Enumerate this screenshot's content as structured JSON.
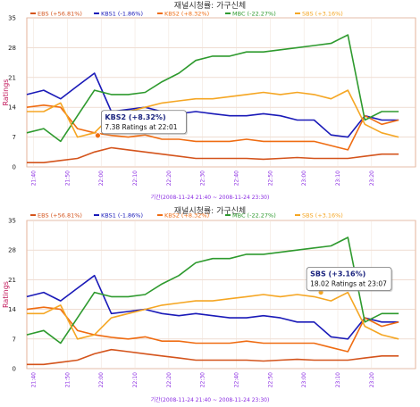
{
  "chart_data": [
    {
      "type": "line",
      "title": "재널시청률: 가구신체",
      "xlabel": "기간(2008-11-24 21:40 ~ 2008-11-24 23:30)",
      "ylabel": "Ratings",
      "ylim": [
        0,
        35
      ],
      "yticks": [
        "0",
        "7",
        "14",
        "21",
        "28",
        "35"
      ],
      "xticks": [
        "21:40",
        "21:50",
        "22:00",
        "22:10",
        "22:20",
        "22:30",
        "22:40",
        "22:50",
        "23:00",
        "23:10",
        "23:20"
      ],
      "grid": true,
      "legend_position": "top",
      "series": [
        {
          "name": "EBS (+56.81%)",
          "color": "#d4541c",
          "x": [
            0,
            5,
            10,
            15,
            20,
            25,
            30,
            35,
            40,
            45,
            50,
            55,
            60,
            65,
            70,
            75,
            80,
            85,
            90,
            95,
            100,
            105,
            110
          ],
          "values": [
            1,
            1,
            1.5,
            2,
            3.5,
            4.5,
            4,
            3.5,
            3,
            2.5,
            2,
            2,
            2,
            2,
            1.8,
            2,
            2.2,
            2,
            2,
            2,
            2.5,
            3,
            3
          ]
        },
        {
          "name": "KBS1 (-1.86%)",
          "color": "#1a1ab8",
          "x": [
            0,
            5,
            10,
            15,
            20,
            25,
            30,
            35,
            40,
            45,
            50,
            55,
            60,
            65,
            70,
            75,
            80,
            85,
            90,
            95,
            100,
            105,
            110
          ],
          "values": [
            17,
            18,
            16,
            19,
            22,
            13,
            13.5,
            14,
            13,
            12.5,
            13,
            12.5,
            12,
            12,
            12.5,
            12,
            11,
            11,
            7.5,
            7,
            12,
            11,
            11
          ]
        },
        {
          "name": "KBS2 (+8.32%)",
          "color": "#ef6c12",
          "x": [
            0,
            5,
            10,
            15,
            20,
            25,
            30,
            35,
            40,
            45,
            50,
            55,
            60,
            65,
            70,
            75,
            80,
            85,
            90,
            95,
            100,
            105,
            110
          ],
          "values": [
            14,
            14.5,
            14,
            9,
            8,
            7.4,
            7,
            7.5,
            6.5,
            6.5,
            6,
            6,
            6,
            6.5,
            6,
            6,
            6,
            6,
            5,
            4,
            12,
            10,
            11
          ]
        },
        {
          "name": "MBC (-22.27%)",
          "color": "#2e9a2e",
          "x": [
            0,
            5,
            10,
            15,
            20,
            25,
            30,
            35,
            40,
            45,
            50,
            55,
            60,
            65,
            70,
            75,
            80,
            85,
            90,
            95,
            100,
            105,
            110
          ],
          "values": [
            8,
            9,
            6,
            12,
            18,
            17,
            17,
            17.5,
            20,
            22,
            25,
            26,
            26,
            27,
            27,
            27.5,
            28,
            28.5,
            29,
            31,
            11,
            13,
            13
          ]
        },
        {
          "name": "SBS (+3.16%)",
          "color": "#f5a623",
          "x": [
            0,
            5,
            10,
            15,
            20,
            25,
            30,
            35,
            40,
            45,
            50,
            55,
            60,
            65,
            70,
            75,
            80,
            85,
            90,
            95,
            100,
            105,
            110
          ],
          "values": [
            13,
            13,
            15,
            7,
            8,
            12,
            13,
            14,
            15,
            15.5,
            16,
            16,
            16.5,
            17,
            17.5,
            17,
            17.5,
            17,
            16,
            18,
            10,
            8,
            7
          ]
        }
      ],
      "tooltip": {
        "title": "KBS2 (+8.32%)",
        "text": "7.38 Ratings at 22:01",
        "x": 21,
        "y": 7.38,
        "series": 2
      }
    },
    {
      "type": "line",
      "title": "재널시청률: 가구신체",
      "xlabel": "기간(2008-11-24 21:40 ~ 2008-11-24 23:30)",
      "ylabel": "Ratings",
      "ylim": [
        0,
        35
      ],
      "yticks": [
        "0",
        "7",
        "14",
        "21",
        "28",
        "35"
      ],
      "xticks": [
        "21:40",
        "21:50",
        "22:00",
        "22:10",
        "22:20",
        "22:30",
        "22:40",
        "22:50",
        "23:00",
        "23:10",
        "23:20"
      ],
      "grid": true,
      "legend_position": "top",
      "series": [
        {
          "name": "EBS (+56.81%)",
          "color": "#d4541c",
          "x": [
            0,
            5,
            10,
            15,
            20,
            25,
            30,
            35,
            40,
            45,
            50,
            55,
            60,
            65,
            70,
            75,
            80,
            85,
            90,
            95,
            100,
            105,
            110
          ],
          "values": [
            1,
            1,
            1.5,
            2,
            3.5,
            4.5,
            4,
            3.5,
            3,
            2.5,
            2,
            2,
            2,
            2,
            1.8,
            2,
            2.2,
            2,
            2,
            2,
            2.5,
            3,
            3
          ]
        },
        {
          "name": "KBS1 (-1.86%)",
          "color": "#1a1ab8",
          "x": [
            0,
            5,
            10,
            15,
            20,
            25,
            30,
            35,
            40,
            45,
            50,
            55,
            60,
            65,
            70,
            75,
            80,
            85,
            90,
            95,
            100,
            105,
            110
          ],
          "values": [
            17,
            18,
            16,
            19,
            22,
            13,
            13.5,
            14,
            13,
            12.5,
            13,
            12.5,
            12,
            12,
            12.5,
            12,
            11,
            11,
            7.5,
            7,
            12,
            11,
            11
          ]
        },
        {
          "name": "KBS2 (+8.32%)",
          "color": "#ef6c12",
          "x": [
            0,
            5,
            10,
            15,
            20,
            25,
            30,
            35,
            40,
            45,
            50,
            55,
            60,
            65,
            70,
            75,
            80,
            85,
            90,
            95,
            100,
            105,
            110
          ],
          "values": [
            14,
            14.5,
            14,
            9,
            8,
            7.4,
            7,
            7.5,
            6.5,
            6.5,
            6,
            6,
            6,
            6.5,
            6,
            6,
            6,
            6,
            5,
            4,
            12,
            10,
            11
          ]
        },
        {
          "name": "MBC (-22.27%)",
          "color": "#2e9a2e",
          "x": [
            0,
            5,
            10,
            15,
            20,
            25,
            30,
            35,
            40,
            45,
            50,
            55,
            60,
            65,
            70,
            75,
            80,
            85,
            90,
            95,
            100,
            105,
            110
          ],
          "values": [
            8,
            9,
            6,
            12,
            18,
            17,
            17,
            17.5,
            20,
            22,
            25,
            26,
            26,
            27,
            27,
            27.5,
            28,
            28.5,
            29,
            31,
            11,
            13,
            13
          ]
        },
        {
          "name": "SBS (+3.16%)",
          "color": "#f5a623",
          "x": [
            0,
            5,
            10,
            15,
            20,
            25,
            30,
            35,
            40,
            45,
            50,
            55,
            60,
            65,
            70,
            75,
            80,
            85,
            90,
            95,
            100,
            105,
            110
          ],
          "values": [
            13,
            13,
            15,
            7,
            8,
            12,
            13,
            14,
            15,
            15.5,
            16,
            16,
            16.5,
            17,
            17.5,
            17,
            17.5,
            17,
            16,
            18,
            10,
            8,
            7
          ]
        }
      ],
      "tooltip": {
        "title": "SBS (+3.16%)",
        "text": "18.02 Ratings at 23:07",
        "x": 87,
        "y": 18.02,
        "series": 4
      }
    }
  ]
}
